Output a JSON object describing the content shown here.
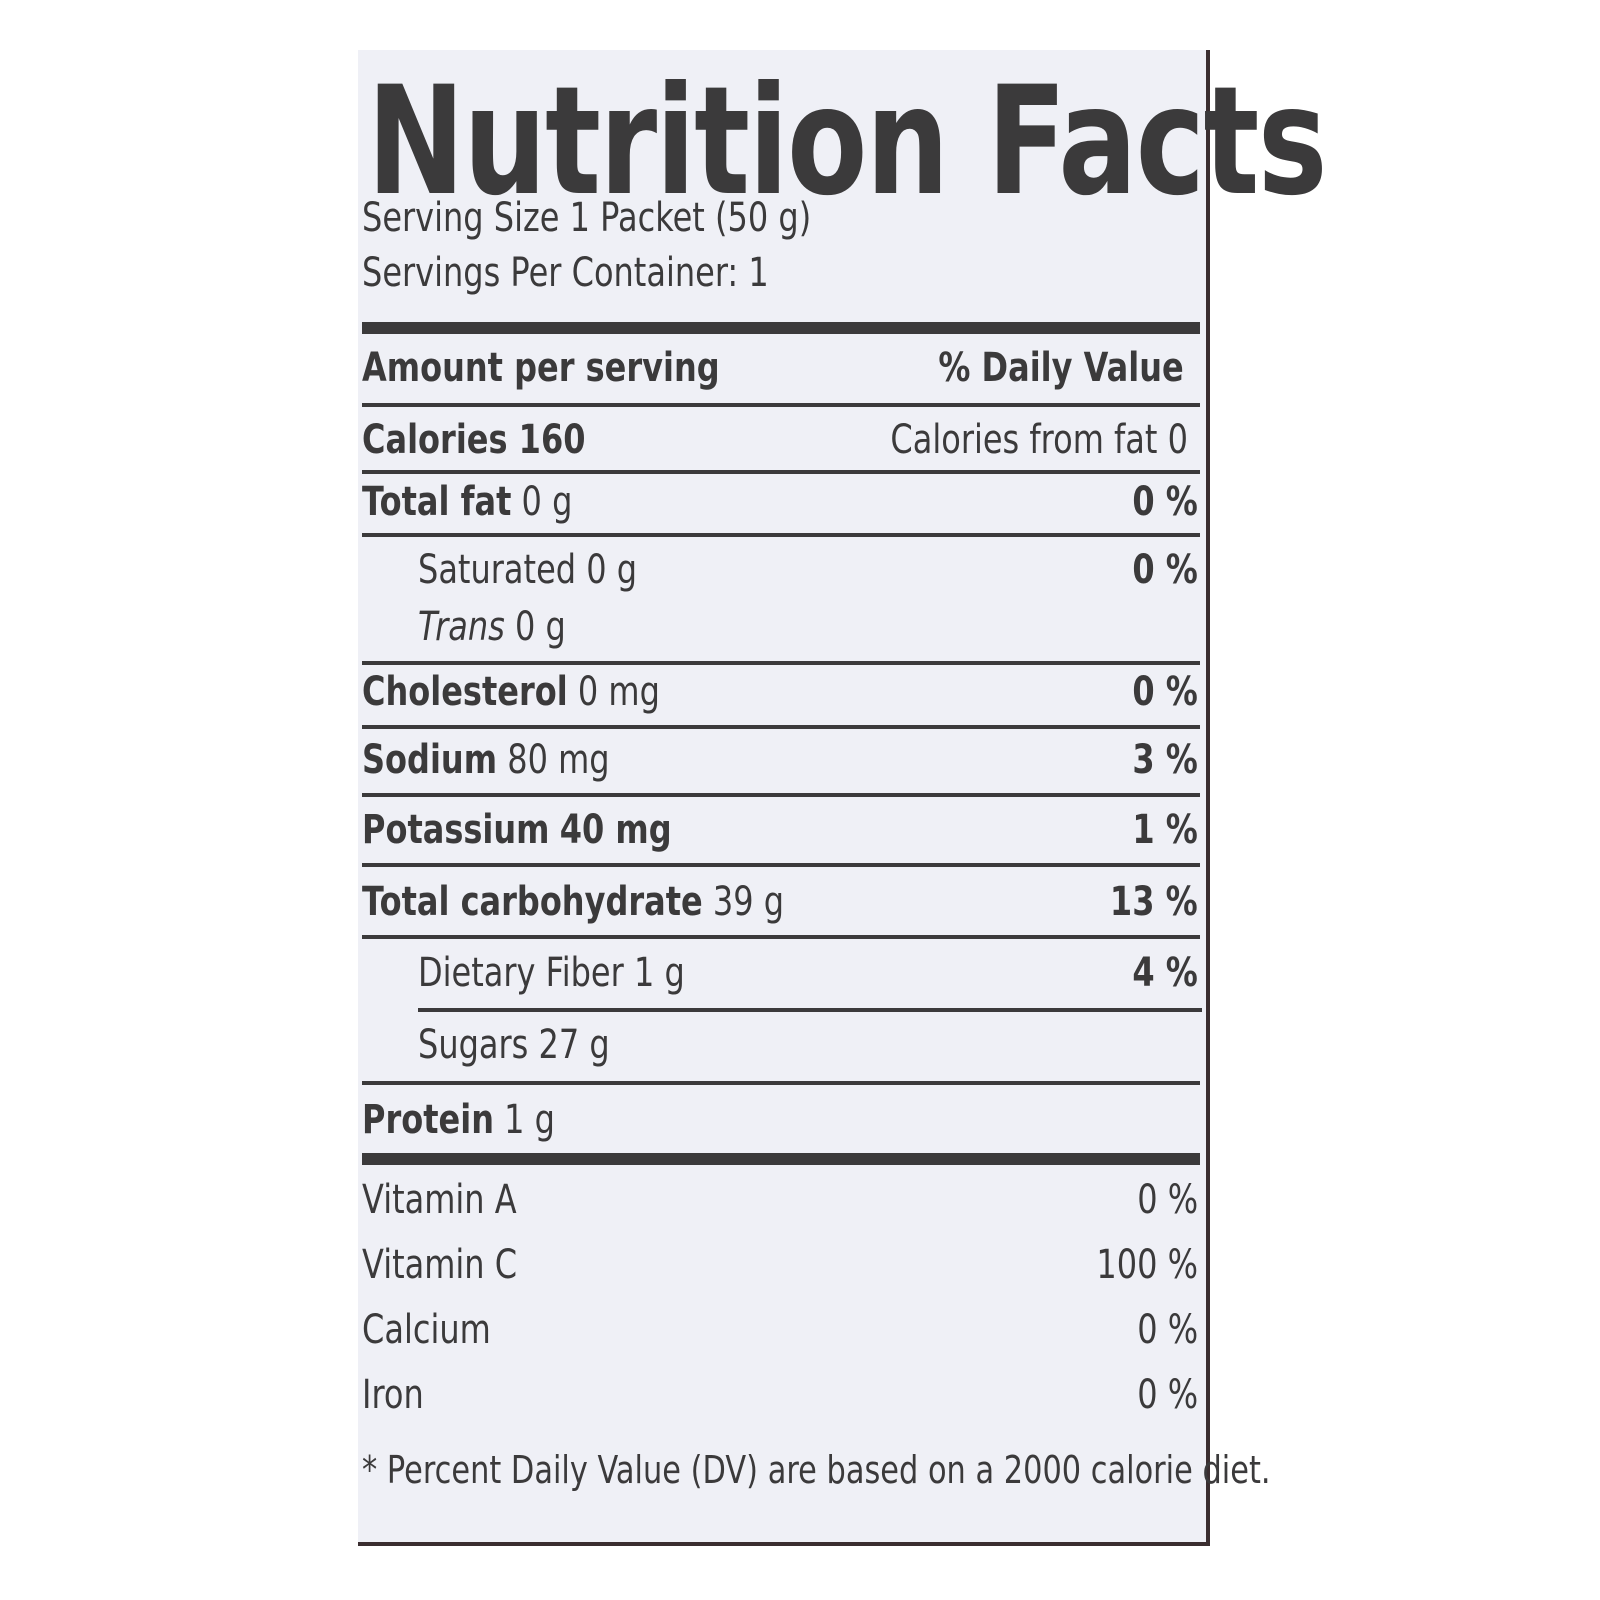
{
  "label": {
    "title": "Nutrition Facts",
    "serving_size": "Serving Size 1 Packet (50 g)",
    "servings_per_container": "Servings Per Container: 1",
    "header_left": "Amount per serving",
    "header_right": "% Daily Value",
    "calories": "Calories 160",
    "calories_from_fat": "Calories from fat 0",
    "nutrients": [
      {
        "name": "Total fat",
        "amount": "0 g",
        "dv": "0 %"
      },
      {
        "name": "Saturated",
        "amount": "0 g",
        "dv": "0 %"
      },
      {
        "name": "Trans",
        "amount": "0 g"
      },
      {
        "name": "Cholesterol",
        "amount": "0 mg",
        "dv": "0 %"
      },
      {
        "name": "Sodium",
        "amount": "80 mg",
        "dv": "3 %"
      },
      {
        "name": "Potassium",
        "amount": "40 mg",
        "dv": "1 %"
      },
      {
        "name": "Total carbohydrate",
        "amount": "39 g",
        "dv": "13 %"
      },
      {
        "name": "Dietary Fiber",
        "amount": "1 g",
        "dv": "4 %"
      },
      {
        "name": "Sugars",
        "amount": "27 g"
      },
      {
        "name": "Protein",
        "amount": "1 g"
      }
    ],
    "vitamins": [
      {
        "name": "Vitamin A",
        "dv": "0 %"
      },
      {
        "name": "Vitamin C",
        "dv": "100 %"
      },
      {
        "name": "Calcium",
        "dv": "0 %"
      },
      {
        "name": "Iron",
        "dv": "0 %"
      }
    ],
    "footnote": "* Percent Daily Value (DV) are based on a 2000 calorie diet."
  }
}
